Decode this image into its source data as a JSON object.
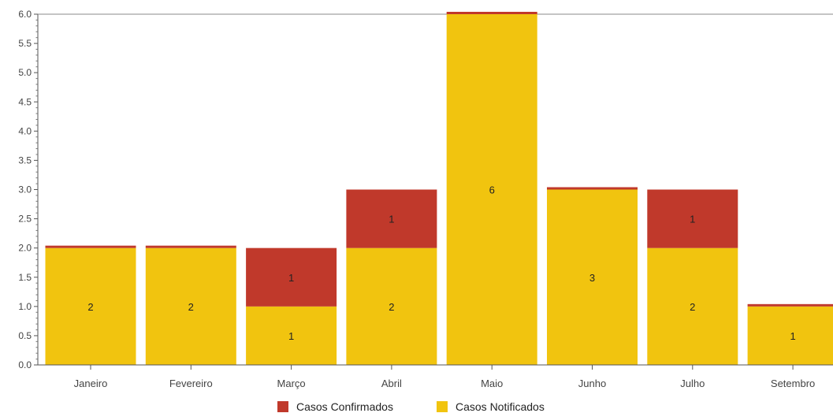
{
  "chart_data": {
    "type": "bar",
    "stacked": true,
    "categories": [
      "Janeiro",
      "Fevereiro",
      "Março",
      "Abril",
      "Maio",
      "Junho",
      "Julho",
      "Setembro"
    ],
    "series": [
      {
        "name": "Casos Notificados",
        "color": "#f1c40f",
        "values": [
          2,
          2,
          1,
          2,
          6,
          3,
          2,
          1
        ],
        "labels": [
          "2",
          "2",
          "1",
          "2",
          "6",
          "3",
          "2",
          "1"
        ]
      },
      {
        "name": "Casos Confirmados",
        "color": "#c0392b",
        "values": [
          0,
          0,
          1,
          1,
          0,
          0,
          1,
          0
        ],
        "labels": [
          "",
          "",
          "1",
          "1",
          "",
          "",
          "1",
          ""
        ]
      }
    ],
    "yticks": [
      "0.0",
      "0.5",
      "1.0",
      "1.5",
      "2.0",
      "2.5",
      "3.0",
      "3.5",
      "4.0",
      "4.5",
      "5.0",
      "5.5",
      "6.0"
    ],
    "ylim": [
      0,
      6
    ],
    "legend": {
      "position": "bottom-center",
      "items": [
        {
          "label": "Casos Confirmados",
          "color": "#c0392b"
        },
        {
          "label": "Casos Notificados",
          "color": "#f1c40f"
        }
      ]
    },
    "grid": false
  }
}
